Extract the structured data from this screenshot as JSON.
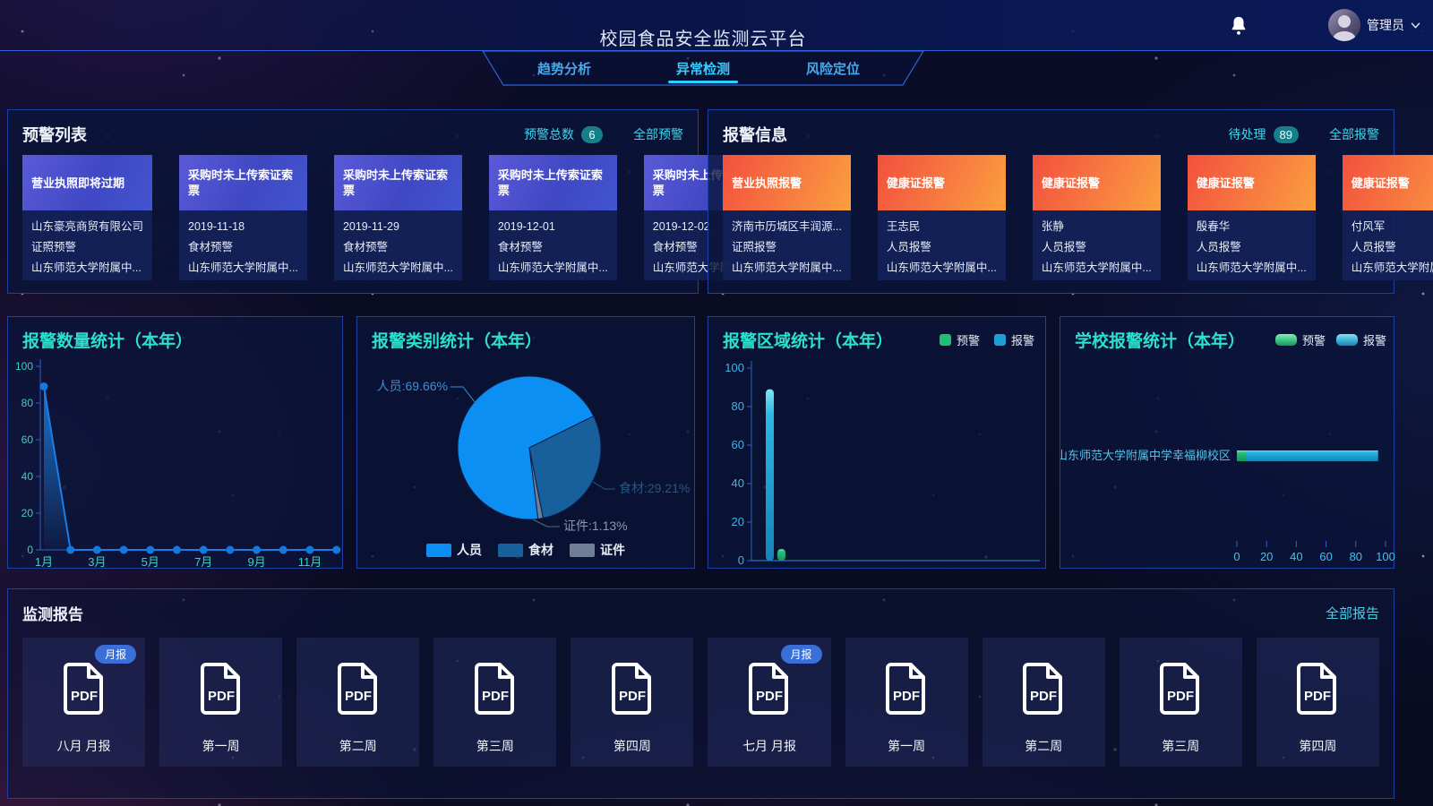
{
  "header": {
    "title": "校园食品安全监测云平台",
    "tabs": [
      {
        "label": "趋势分析",
        "active": false
      },
      {
        "label": "异常检测",
        "active": true
      },
      {
        "label": "风险定位",
        "active": false
      }
    ],
    "user": {
      "name": "管理员"
    }
  },
  "colors": {
    "accent_cyan": "#2be0cd",
    "link_cyan": "#3fd4ec",
    "badge_teal": "#157f8a",
    "warning_card_gradient": [
      "#5a5ad8",
      "#4254cf"
    ],
    "alarm_card_gradient": [
      "#f2503e",
      "#faa03e"
    ]
  },
  "warning_panel": {
    "title": "预警列表",
    "count_label": "预警总数",
    "count": "6",
    "link": "全部预警",
    "cards": [
      {
        "title": "营业执照即将过期",
        "line1": "山东豪亮商贸有限公司",
        "line2": "证照预警",
        "line3": "山东师范大学附属中..."
      },
      {
        "title": "采购时未上传索证索票",
        "line1": "2019-11-18",
        "line2": "食材预警",
        "line3": "山东师范大学附属中..."
      },
      {
        "title": "采购时未上传索证索票",
        "line1": "2019-11-29",
        "line2": "食材预警",
        "line3": "山东师范大学附属中..."
      },
      {
        "title": "采购时未上传索证索票",
        "line1": "2019-12-01",
        "line2": "食材预警",
        "line3": "山东师范大学附属中..."
      },
      {
        "title": "采购时未上传索证索票",
        "line1": "2019-12-02",
        "line2": "食材预警",
        "line3": "山东师范大学附属中..."
      }
    ]
  },
  "alarm_panel": {
    "title": "报警信息",
    "count_label": "待处理",
    "count": "89",
    "link": "全部报警",
    "cards": [
      {
        "title": "营业执照报警",
        "line1": "济南市历城区丰润源...",
        "line2": "证照报警",
        "line3": "山东师范大学附属中..."
      },
      {
        "title": "健康证报警",
        "line1": "王志民",
        "line2": "人员报警",
        "line3": "山东师范大学附属中..."
      },
      {
        "title": "健康证报警",
        "line1": "张静",
        "line2": "人员报警",
        "line3": "山东师范大学附属中..."
      },
      {
        "title": "健康证报警",
        "line1": "殷春华",
        "line2": "人员报警",
        "line3": "山东师范大学附属中..."
      },
      {
        "title": "健康证报警",
        "line1": "付风军",
        "line2": "人员报警",
        "line3": "山东师范大学附属中..."
      }
    ]
  },
  "chart_data": [
    {
      "id": "monthly",
      "type": "area",
      "title": "报警数量统计（本年）",
      "x": [
        "1月",
        "2月",
        "3月",
        "4月",
        "5月",
        "6月",
        "7月",
        "8月",
        "9月",
        "10月",
        "11月",
        "12月"
      ],
      "x_label_indices": [
        0,
        2,
        4,
        6,
        8,
        10
      ],
      "values": [
        89,
        0,
        0,
        0,
        0,
        0,
        0,
        0,
        0,
        0,
        0,
        0
      ],
      "ylim": [
        0,
        100
      ],
      "yticks": [
        0,
        20,
        40,
        60,
        80,
        100
      ],
      "line_color": "#1a7de8",
      "grid": false
    },
    {
      "id": "category",
      "type": "pie",
      "title": "报警类别统计（本年）",
      "start_angle": 173,
      "slices": [
        {
          "name": "人员",
          "pct": 69.66,
          "color": "#0b8ff2",
          "label_color": "#3e8fd0"
        },
        {
          "name": "食材",
          "pct": 29.21,
          "color": "#17609b",
          "label_color": "#2b5580"
        },
        {
          "name": "证件",
          "pct": 1.13,
          "color": "#6e7f95",
          "label_color": "#8897aa"
        }
      ],
      "legend": [
        "人员",
        "食材",
        "证件"
      ],
      "legend_position": "bottom"
    },
    {
      "id": "region",
      "type": "bar",
      "title": "报警区域统计（本年）",
      "legend": [
        {
          "name": "预警",
          "color": "green"
        },
        {
          "name": "报警",
          "color": "blue"
        }
      ],
      "bars": [
        {
          "name": "报警",
          "value": 89,
          "color": "blue"
        },
        {
          "name": "预警",
          "value": 6,
          "color": "green"
        }
      ],
      "ylim": [
        0,
        100
      ],
      "yticks": [
        0,
        20,
        40,
        60,
        80,
        100
      ],
      "grid": false
    },
    {
      "id": "school",
      "type": "hbar",
      "title": "学校报警统计（本年）",
      "legend": [
        {
          "name": "预警",
          "color": "green"
        },
        {
          "name": "报警",
          "color": "blue"
        }
      ],
      "category": "山东师范大学附属中学幸福柳校区",
      "series": [
        {
          "name": "预警",
          "value": 6,
          "color": "green"
        },
        {
          "name": "报警",
          "value": 89,
          "color": "blue"
        }
      ],
      "xlim": [
        0,
        100
      ],
      "xticks": [
        0,
        20,
        40,
        60,
        80,
        100
      ]
    }
  ],
  "reports_panel": {
    "title": "监测报告",
    "link": "全部报告",
    "pdf_label": "PDF",
    "items": [
      {
        "label": "八月 月报",
        "badge": "月报"
      },
      {
        "label": "第一周"
      },
      {
        "label": "第二周"
      },
      {
        "label": "第三周"
      },
      {
        "label": "第四周"
      },
      {
        "label": "七月 月报",
        "badge": "月报"
      },
      {
        "label": "第一周"
      },
      {
        "label": "第二周"
      },
      {
        "label": "第三周"
      },
      {
        "label": "第四周"
      }
    ]
  }
}
